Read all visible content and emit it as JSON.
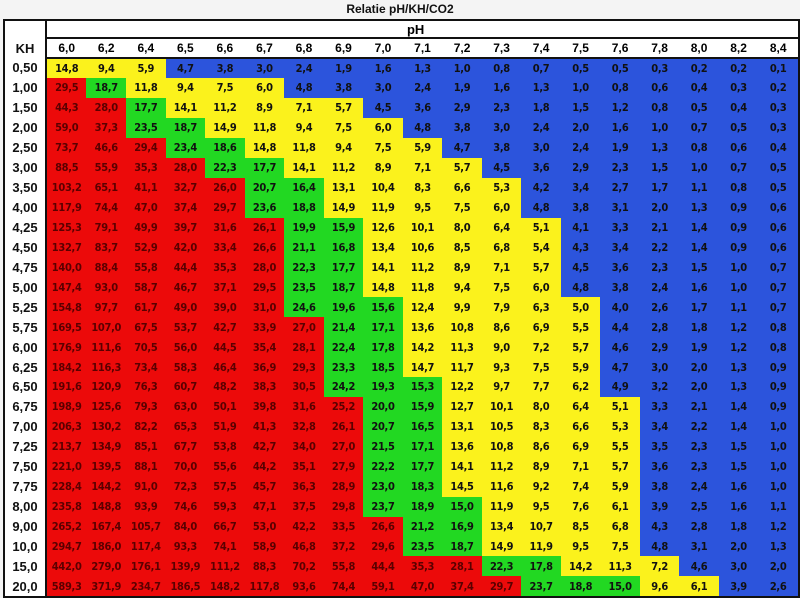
{
  "chart_data": {
    "type": "heatmap",
    "title": "Relatie pH/KH/CO2",
    "x_label": "pH",
    "y_label": "KH",
    "ph": [
      "6,0",
      "6,2",
      "6,4",
      "6,5",
      "6,6",
      "6,7",
      "6,8",
      "6,9",
      "7,0",
      "7,1",
      "7,2",
      "7,3",
      "7,4",
      "7,5",
      "7,6",
      "7,8",
      "8,0",
      "8,2",
      "8,4"
    ],
    "colors": {
      "R": "#ec0a0a",
      "G": "#22d822",
      "Y": "#fbf21c",
      "B": "#2c54dc"
    },
    "rows": [
      {
        "kh": "0,50",
        "c": "YYYBBBBBBBBBBBBBBBB",
        "v": [
          "14,8",
          "9,4",
          "5,9",
          "4,7",
          "3,8",
          "3,0",
          "2,4",
          "1,9",
          "1,6",
          "1,3",
          "1,0",
          "0,8",
          "0,7",
          "0,5",
          "0,5",
          "0,3",
          "0,2",
          "0,2",
          "0,1"
        ]
      },
      {
        "kh": "1,00",
        "c": "RGYYYYBBBBBBBBBBBBB",
        "v": [
          "29,5",
          "18,7",
          "11,8",
          "9,4",
          "7,5",
          "6,0",
          "4,8",
          "3,8",
          "3,0",
          "2,4",
          "1,9",
          "1,6",
          "1,3",
          "1,0",
          "0,8",
          "0,6",
          "0,4",
          "0,3",
          "0,2"
        ]
      },
      {
        "kh": "1,50",
        "c": "RRGYYYYYBBBBBBBBBBB",
        "v": [
          "44,3",
          "28,0",
          "17,7",
          "14,1",
          "11,2",
          "8,9",
          "7,1",
          "5,7",
          "4,5",
          "3,6",
          "2,9",
          "2,3",
          "1,8",
          "1,5",
          "1,2",
          "0,8",
          "0,5",
          "0,4",
          "0,3"
        ]
      },
      {
        "kh": "2,00",
        "c": "RRGGYYYYYBBBBBBBBBB",
        "v": [
          "59,0",
          "37,3",
          "23,5",
          "18,7",
          "14,9",
          "11,8",
          "9,4",
          "7,5",
          "6,0",
          "4,8",
          "3,8",
          "3,0",
          "2,4",
          "2,0",
          "1,6",
          "1,0",
          "0,7",
          "0,5",
          "0,3"
        ]
      },
      {
        "kh": "2,50",
        "c": "RRRGGYYYYYBBBBBBBBB",
        "v": [
          "73,7",
          "46,6",
          "29,4",
          "23,4",
          "18,6",
          "14,8",
          "11,8",
          "9,4",
          "7,5",
          "5,9",
          "4,7",
          "3,8",
          "3,0",
          "2,4",
          "1,9",
          "1,3",
          "0,8",
          "0,6",
          "0,4"
        ]
      },
      {
        "kh": "3,00",
        "c": "RRRRGGYYYYYBBBBBBBB",
        "v": [
          "88,5",
          "55,9",
          "35,3",
          "28,0",
          "22,3",
          "17,7",
          "14,1",
          "11,2",
          "8,9",
          "7,1",
          "5,7",
          "4,5",
          "3,6",
          "2,9",
          "2,3",
          "1,5",
          "1,0",
          "0,7",
          "0,5"
        ]
      },
      {
        "kh": "3,50",
        "c": "RRRRRGGYYYYYBBBBBBB",
        "v": [
          "103,2",
          "65,1",
          "41,1",
          "32,7",
          "26,0",
          "20,7",
          "16,4",
          "13,1",
          "10,4",
          "8,3",
          "6,6",
          "5,3",
          "4,2",
          "3,4",
          "2,7",
          "1,7",
          "1,1",
          "0,8",
          "0,5"
        ]
      },
      {
        "kh": "4,00",
        "c": "RRRRRGGYYYYYBBBBBBB",
        "v": [
          "117,9",
          "74,4",
          "47,0",
          "37,4",
          "29,7",
          "23,6",
          "18,8",
          "14,9",
          "11,9",
          "9,5",
          "7,5",
          "6,0",
          "4,8",
          "3,8",
          "3,1",
          "2,0",
          "1,3",
          "0,9",
          "0,6"
        ]
      },
      {
        "kh": "4,25",
        "c": "RRRRRRGGYYYYYBBBBBB",
        "v": [
          "125,3",
          "79,1",
          "49,9",
          "39,7",
          "31,6",
          "26,1",
          "19,9",
          "15,9",
          "12,6",
          "10,1",
          "8,0",
          "6,4",
          "5,1",
          "4,1",
          "3,3",
          "2,1",
          "1,4",
          "0,9",
          "0,6"
        ]
      },
      {
        "kh": "4,50",
        "c": "RRRRRRGGYYYYYBBBBBB",
        "v": [
          "132,7",
          "83,7",
          "52,9",
          "42,0",
          "33,4",
          "26,6",
          "21,1",
          "16,8",
          "13,4",
          "10,6",
          "8,5",
          "6,8",
          "5,4",
          "4,3",
          "3,4",
          "2,2",
          "1,4",
          "0,9",
          "0,6"
        ]
      },
      {
        "kh": "4,75",
        "c": "RRRRRRGGYYYYYBBBBBB",
        "v": [
          "140,0",
          "88,4",
          "55,8",
          "44,4",
          "35,3",
          "28,0",
          "22,3",
          "17,7",
          "14,1",
          "11,2",
          "8,9",
          "7,1",
          "5,7",
          "4,5",
          "3,6",
          "2,3",
          "1,5",
          "1,0",
          "0,7"
        ]
      },
      {
        "kh": "5,00",
        "c": "RRRRRRGGYYYYYBBBBBB",
        "v": [
          "147,4",
          "93,0",
          "58,7",
          "46,7",
          "37,1",
          "29,5",
          "23,5",
          "18,7",
          "14,8",
          "11,8",
          "9,4",
          "7,5",
          "6,0",
          "4,8",
          "3,8",
          "2,4",
          "1,6",
          "1,0",
          "0,7"
        ]
      },
      {
        "kh": "5,25",
        "c": "RRRRRRGGGYYYYYBBBBB",
        "v": [
          "154,8",
          "97,7",
          "61,7",
          "49,0",
          "39,0",
          "31,0",
          "24,6",
          "19,6",
          "15,6",
          "12,4",
          "9,9",
          "7,9",
          "6,3",
          "5,0",
          "4,0",
          "2,6",
          "1,7",
          "1,1",
          "0,7"
        ]
      },
      {
        "kh": "5,75",
        "c": "RRRRRRRGGYYYYYBBBBB",
        "v": [
          "169,5",
          "107,0",
          "67,5",
          "53,7",
          "42,7",
          "33,9",
          "27,0",
          "21,4",
          "17,1",
          "13,6",
          "10,8",
          "8,6",
          "6,9",
          "5,5",
          "4,4",
          "2,8",
          "1,8",
          "1,2",
          "0,8"
        ]
      },
      {
        "kh": "6,00",
        "c": "RRRRRRRGGYYYYYBBBBB",
        "v": [
          "176,9",
          "111,6",
          "70,5",
          "56,0",
          "44,5",
          "35,4",
          "28,1",
          "22,4",
          "17,8",
          "14,2",
          "11,3",
          "9,0",
          "7,2",
          "5,7",
          "4,6",
          "2,9",
          "1,9",
          "1,2",
          "0,8"
        ]
      },
      {
        "kh": "6,25",
        "c": "RRRRRRRGGYYYYYBBBBB",
        "v": [
          "184,2",
          "116,3",
          "73,4",
          "58,3",
          "46,4",
          "36,9",
          "29,3",
          "23,3",
          "18,5",
          "14,7",
          "11,7",
          "9,3",
          "7,5",
          "5,9",
          "4,7",
          "3,0",
          "2,0",
          "1,3",
          "0,9"
        ]
      },
      {
        "kh": "6,50",
        "c": "RRRRRRRGGGYYYYBBBBB",
        "v": [
          "191,6",
          "120,9",
          "76,3",
          "60,7",
          "48,2",
          "38,3",
          "30,5",
          "24,2",
          "19,3",
          "15,3",
          "12,2",
          "9,7",
          "7,7",
          "6,2",
          "4,9",
          "3,2",
          "2,0",
          "1,3",
          "0,9"
        ]
      },
      {
        "kh": "6,75",
        "c": "RRRRRRRRGGYYYYYBBBB",
        "v": [
          "198,9",
          "125,6",
          "79,3",
          "63,0",
          "50,1",
          "39,8",
          "31,6",
          "25,2",
          "20,0",
          "15,9",
          "12,7",
          "10,1",
          "8,0",
          "6,4",
          "5,1",
          "3,3",
          "2,1",
          "1,4",
          "0,9"
        ]
      },
      {
        "kh": "7,00",
        "c": "RRRRRRRRGGYYYYYBBBB",
        "v": [
          "206,3",
          "130,2",
          "82,2",
          "65,3",
          "51,9",
          "41,3",
          "32,8",
          "26,1",
          "20,7",
          "16,5",
          "13,1",
          "10,5",
          "8,3",
          "6,6",
          "5,3",
          "3,4",
          "2,2",
          "1,4",
          "1,0"
        ]
      },
      {
        "kh": "7,25",
        "c": "RRRRRRRRGGYYYYYBBBB",
        "v": [
          "213,7",
          "134,9",
          "85,1",
          "67,7",
          "53,8",
          "42,7",
          "34,0",
          "27,0",
          "21,5",
          "17,1",
          "13,6",
          "10,8",
          "8,6",
          "6,9",
          "5,5",
          "3,5",
          "2,3",
          "1,5",
          "1,0"
        ]
      },
      {
        "kh": "7,50",
        "c": "RRRRRRRRGGYYYYYBBBB",
        "v": [
          "221,0",
          "139,5",
          "88,1",
          "70,0",
          "55,6",
          "44,2",
          "35,1",
          "27,9",
          "22,2",
          "17,7",
          "14,1",
          "11,2",
          "8,9",
          "7,1",
          "5,7",
          "3,6",
          "2,3",
          "1,5",
          "1,0"
        ]
      },
      {
        "kh": "7,75",
        "c": "RRRRRRRRGGYYYYYBBBB",
        "v": [
          "228,4",
          "144,2",
          "91,0",
          "72,3",
          "57,5",
          "45,7",
          "36,3",
          "28,9",
          "23,0",
          "18,3",
          "14,5",
          "11,6",
          "9,2",
          "7,4",
          "5,9",
          "3,8",
          "2,4",
          "1,6",
          "1,0"
        ]
      },
      {
        "kh": "8,00",
        "c": "RRRRRRRRGGGYYYYBBBB",
        "v": [
          "235,8",
          "148,8",
          "93,9",
          "74,6",
          "59,3",
          "47,1",
          "37,5",
          "29,8",
          "23,7",
          "18,9",
          "15,0",
          "11,9",
          "9,5",
          "7,6",
          "6,1",
          "3,9",
          "2,5",
          "1,6",
          "1,1"
        ]
      },
      {
        "kh": "9,00",
        "c": "RRRRRRRRRGGYYYYBBBB",
        "v": [
          "265,2",
          "167,4",
          "105,7",
          "84,0",
          "66,7",
          "53,0",
          "42,2",
          "33,5",
          "26,6",
          "21,2",
          "16,9",
          "13,4",
          "10,7",
          "8,5",
          "6,8",
          "4,3",
          "2,8",
          "1,8",
          "1,2"
        ]
      },
      {
        "kh": "10,0",
        "c": "RRRRRRRRRGGYYYYBBBB",
        "v": [
          "294,7",
          "186,0",
          "117,4",
          "93,3",
          "74,1",
          "58,9",
          "46,8",
          "37,2",
          "29,6",
          "23,5",
          "18,7",
          "14,9",
          "11,9",
          "9,5",
          "7,5",
          "4,8",
          "3,1",
          "2,0",
          "1,3"
        ]
      },
      {
        "kh": "15,0",
        "c": "RRRRRRRRRRRGGYYYBBB",
        "v": [
          "442,0",
          "279,0",
          "176,1",
          "139,9",
          "111,2",
          "88,3",
          "70,2",
          "55,8",
          "44,4",
          "35,3",
          "28,1",
          "22,3",
          "17,8",
          "14,2",
          "11,3",
          "7,2",
          "4,6",
          "3,0",
          "2,0"
        ]
      },
      {
        "kh": "20,0",
        "c": "RRRRRRRRRRRRGGGYYBB",
        "v": [
          "589,3",
          "371,9",
          "234,7",
          "186,5",
          "148,2",
          "117,8",
          "93,6",
          "74,4",
          "59,1",
          "47,0",
          "37,4",
          "29,7",
          "23,7",
          "18,8",
          "15,0",
          "9,6",
          "6,1",
          "3,9",
          "2,6"
        ]
      }
    ]
  }
}
